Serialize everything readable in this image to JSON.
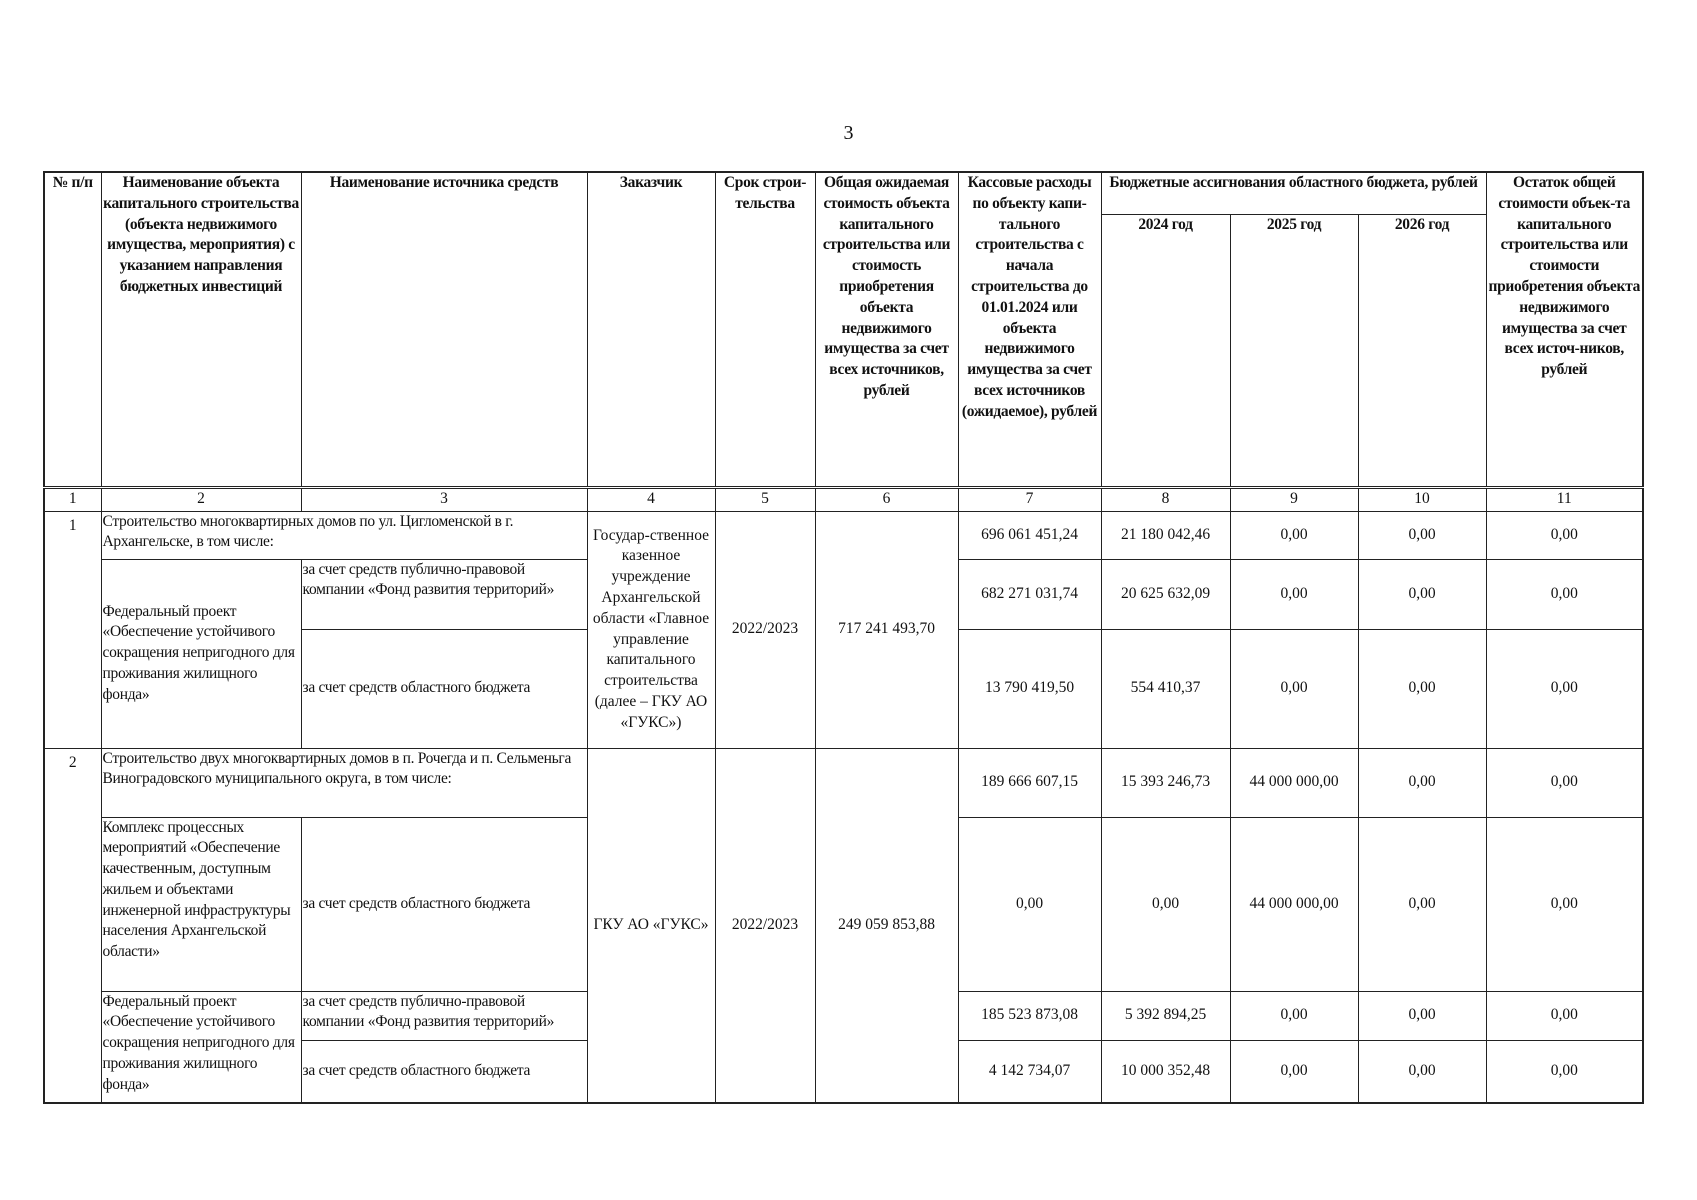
{
  "page_number": "3",
  "header": {
    "col1": "№ п/п",
    "col2": "Наименование объекта капитального строительства (объекта недвижимого имущества, мероприятия) с указанием направления бюджетных инвестиций",
    "col3": "Наименование источника средств",
    "col4": "Заказчик",
    "col5": "Срок строи-тельства",
    "col6": "Общая ожидаемая стоимость объекта капитального строительства или стоимость приобретения объекта недвижимого имущества за счет всех источников, рублей",
    "col7": "Кассовые расходы по объекту капи-тального строительства с начала строительства до 01.01.2024 или объекта недвижимого имущества за счет всех источников (ожидаемое), рублей",
    "group": "Бюджетные ассигнования областного бюджета, рублей",
    "years": [
      "2024 год",
      "2025 год",
      "2026 год"
    ],
    "col11": "Остаток общей стоимости объек-та капитального строительства или стоимости приобретения объекта недвижимого имущества за счет всех источ-ников, рублей"
  },
  "column_numbers": [
    "1",
    "2",
    "3",
    "4",
    "5",
    "6",
    "7",
    "8",
    "9",
    "10",
    "11"
  ],
  "objects": [
    {
      "no": "1",
      "name": "Строительство многоквартирных домов по ул. Цигломенской в г. Архангельске, в том числе:",
      "customer": "Государ-ственное казенное учреждение Архангельской области «Главное управление капитального строительства (далее – ГКУ АО «ГУКС»)",
      "term": "2022/2023",
      "total_cost": "717 241 493,70",
      "values": [
        "696 061 451,24",
        "21 180 042,46",
        "0,00",
        "0,00",
        "0,00"
      ],
      "sub": [
        {
          "name": "Федеральный проект «Обеспечение устойчивого сокращения непригодного для проживания жилищного фонда»",
          "sources": [
            {
              "source": "за счет средств публично-правовой компании «Фонд развития территорий»",
              "values": [
                "682 271 031,74",
                "20 625 632,09",
                "0,00",
                "0,00",
                "0,00"
              ]
            },
            {
              "source": "за счет средств областного бюджета",
              "values": [
                "13 790 419,50",
                "554 410,37",
                "0,00",
                "0,00",
                "0,00"
              ]
            }
          ]
        }
      ]
    },
    {
      "no": "2",
      "name": "Строительство двух многоквартирных домов в п. Рочегда и п. Сельменьга Виноградовского муниципального округа, в том числе:",
      "customer": "ГКУ АО «ГУКС»",
      "term": "2022/2023",
      "total_cost": "249 059 853,88",
      "values": [
        "189 666 607,15",
        "15 393 246,73",
        "44 000 000,00",
        "0,00",
        "0,00"
      ],
      "sub": [
        {
          "name": "Комплекс процессных мероприятий «Обеспечение качественным, доступным жильем и объектами инженерной инфраструктуры населения Архангельской области»",
          "sources": [
            {
              "source": "за счет средств областного бюджета",
              "values": [
                "0,00",
                "0,00",
                "44 000 000,00",
                "0,00",
                "0,00"
              ]
            }
          ]
        },
        {
          "name": "Федеральный проект «Обеспечение устойчивого сокращения непригодного для проживания жилищного фонда»",
          "sources": [
            {
              "source": "за счет средств публично-правовой компании «Фонд развития территорий»",
              "values": [
                "185 523 873,08",
                "5 392 894,25",
                "0,00",
                "0,00",
                "0,00"
              ]
            },
            {
              "source": "за счет средств областного бюджета",
              "values": [
                "4 142 734,07",
                "10 000 352,48",
                "0,00",
                "0,00",
                "0,00"
              ]
            }
          ]
        }
      ]
    }
  ]
}
